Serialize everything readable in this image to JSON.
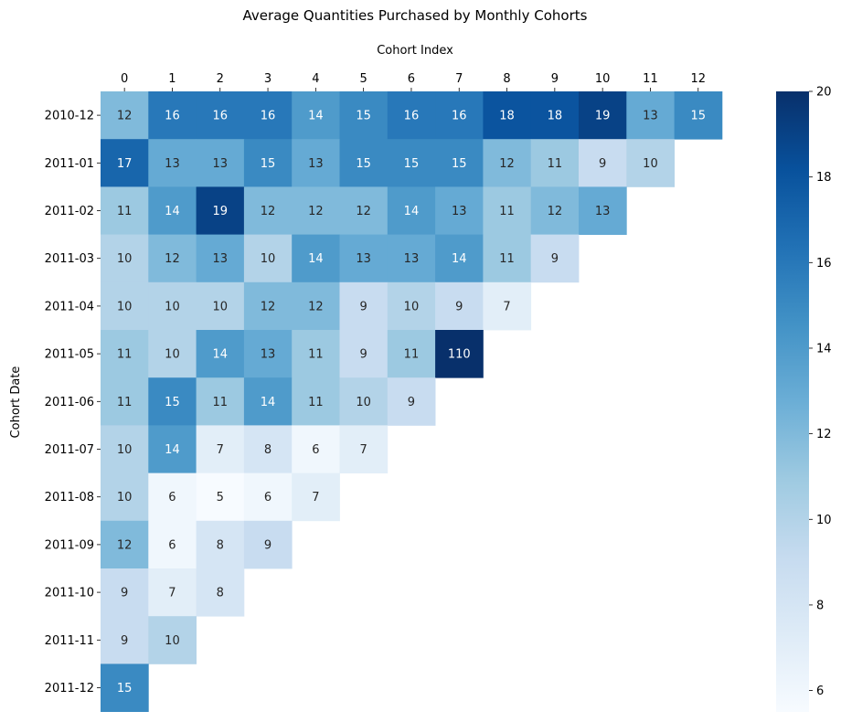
{
  "chart_data": {
    "type": "heatmap",
    "title": "Average Quantities Purchased by Monthly Cohorts",
    "xlabel": "Cohort Index",
    "ylabel": "Cohort Date",
    "x_categories": [
      "0",
      "1",
      "2",
      "3",
      "4",
      "5",
      "6",
      "7",
      "8",
      "9",
      "10",
      "11",
      "12"
    ],
    "y_categories": [
      "2010-12",
      "2011-01",
      "2011-02",
      "2011-03",
      "2011-04",
      "2011-05",
      "2011-06",
      "2011-07",
      "2011-08",
      "2011-09",
      "2011-10",
      "2011-11",
      "2011-12"
    ],
    "values": [
      [
        12,
        16,
        16,
        16,
        14,
        15,
        16,
        16,
        18,
        18,
        19,
        13,
        15
      ],
      [
        17,
        13,
        13,
        15,
        13,
        15,
        15,
        15,
        12,
        11,
        9,
        10,
        null
      ],
      [
        11,
        14,
        19,
        12,
        12,
        12,
        14,
        13,
        11,
        12,
        13,
        null,
        null
      ],
      [
        10,
        12,
        13,
        10,
        14,
        13,
        13,
        14,
        11,
        9,
        null,
        null,
        null
      ],
      [
        10,
        10,
        10,
        12,
        12,
        9,
        10,
        9,
        7,
        null,
        null,
        null,
        null
      ],
      [
        11,
        10,
        14,
        13,
        11,
        9,
        11,
        110,
        null,
        null,
        null,
        null,
        null
      ],
      [
        11,
        15,
        11,
        14,
        11,
        10,
        9,
        null,
        null,
        null,
        null,
        null,
        null
      ],
      [
        10,
        14,
        7,
        8,
        6,
        7,
        null,
        null,
        null,
        null,
        null,
        null,
        null
      ],
      [
        10,
        6,
        5,
        6,
        7,
        null,
        null,
        null,
        null,
        null,
        null,
        null,
        null
      ],
      [
        12,
        6,
        8,
        9,
        null,
        null,
        null,
        null,
        null,
        null,
        null,
        null,
        null
      ],
      [
        9,
        7,
        8,
        null,
        null,
        null,
        null,
        null,
        null,
        null,
        null,
        null,
        null
      ],
      [
        9,
        10,
        null,
        null,
        null,
        null,
        null,
        null,
        null,
        null,
        null,
        null,
        null
      ],
      [
        15,
        null,
        null,
        null,
        null,
        null,
        null,
        null,
        null,
        null,
        null,
        null,
        null
      ]
    ],
    "color_range": [
      5.5,
      20
    ],
    "colorbar_ticks": [
      "6",
      "8",
      "10",
      "12",
      "14",
      "16",
      "18",
      "20"
    ],
    "colormap": "Blues",
    "colormap_stops": [
      "#f7fbff",
      "#deebf7",
      "#c6dbef",
      "#9ecae1",
      "#6baed6",
      "#4292c6",
      "#2171b5",
      "#08519c",
      "#08306b"
    ],
    "x_axis_position": "top",
    "grid": false
  }
}
